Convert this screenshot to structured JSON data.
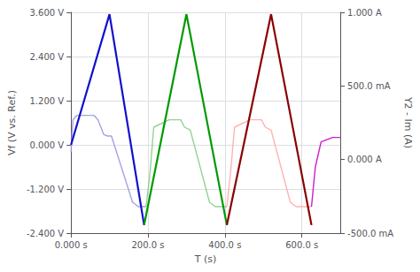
{
  "chart_data": {
    "type": "line",
    "xlabel": "T (s)",
    "ylabel": "Vf (V vs. Ref.)",
    "y2label": "Y2 - Im (A)",
    "xlim": [
      0,
      700
    ],
    "xticks": [
      {
        "value": 0,
        "label": "0.000 s"
      },
      {
        "value": 200,
        "label": "200.0 s"
      },
      {
        "value": 400,
        "label": "400.0 s"
      },
      {
        "value": 600,
        "label": "600.0 s"
      }
    ],
    "ylim": [
      -2.4,
      3.6
    ],
    "yticks": [
      {
        "value": -2.4,
        "label": "-2.400 V"
      },
      {
        "value": -1.2,
        "label": "-1.200 V"
      },
      {
        "value": 0.0,
        "label": "0.000 V"
      },
      {
        "value": 1.2,
        "label": "1.200 V"
      },
      {
        "value": 2.4,
        "label": "2.400 V"
      },
      {
        "value": 3.6,
        "label": "3.600 V"
      }
    ],
    "y2lim": [
      -0.5,
      1.0
    ],
    "y2ticks": [
      {
        "value": -0.5,
        "label": "-500.0 mA"
      },
      {
        "value": 0.0,
        "label": "0.000 A"
      },
      {
        "value": 0.5,
        "label": "500.0 mA"
      },
      {
        "value": 1.0,
        "label": "1.000 A"
      }
    ],
    "grid": true,
    "series": [
      {
        "color": "#1010cc",
        "x": [
          0,
          100,
          190
        ],
        "values": [
          0.0,
          3.55,
          -2.18
        ]
      },
      {
        "color": "#009900",
        "x": [
          190,
          300,
          405
        ],
        "values": [
          -2.18,
          3.55,
          -2.18
        ]
      },
      {
        "color": "#8b0000",
        "x": [
          405,
          520,
          625
        ],
        "values": [
          -2.18,
          3.55,
          -2.18
        ]
      },
      {
        "color": "#9999dd",
        "axis": "y2",
        "x": [
          0,
          5,
          15,
          60,
          70,
          85,
          95,
          105,
          160,
          175,
          185,
          195
        ],
        "values": [
          0.05,
          0.27,
          0.3,
          0.3,
          0.27,
          0.17,
          0.16,
          0.16,
          -0.29,
          -0.32,
          -0.32,
          -0.32
        ]
      },
      {
        "color": "#88cc88",
        "axis": "y2",
        "x": [
          195,
          205,
          215,
          255,
          265,
          285,
          295,
          310,
          360,
          375,
          395,
          405
        ],
        "values": [
          -0.32,
          -0.1,
          0.22,
          0.27,
          0.27,
          0.27,
          0.22,
          0.2,
          -0.29,
          -0.32,
          -0.32,
          -0.32
        ]
      },
      {
        "color": "#ffaaaa",
        "axis": "y2",
        "x": [
          405,
          415,
          425,
          465,
          475,
          495,
          505,
          520,
          570,
          585,
          605,
          625
        ],
        "values": [
          -0.32,
          -0.08,
          0.22,
          0.27,
          0.27,
          0.27,
          0.22,
          0.2,
          -0.29,
          -0.32,
          -0.32,
          -0.32
        ]
      },
      {
        "color": "#cc00cc",
        "axis": "y2",
        "x": [
          625,
          635,
          650,
          680,
          700
        ],
        "values": [
          -0.32,
          -0.05,
          0.12,
          0.15,
          0.15
        ]
      }
    ]
  }
}
